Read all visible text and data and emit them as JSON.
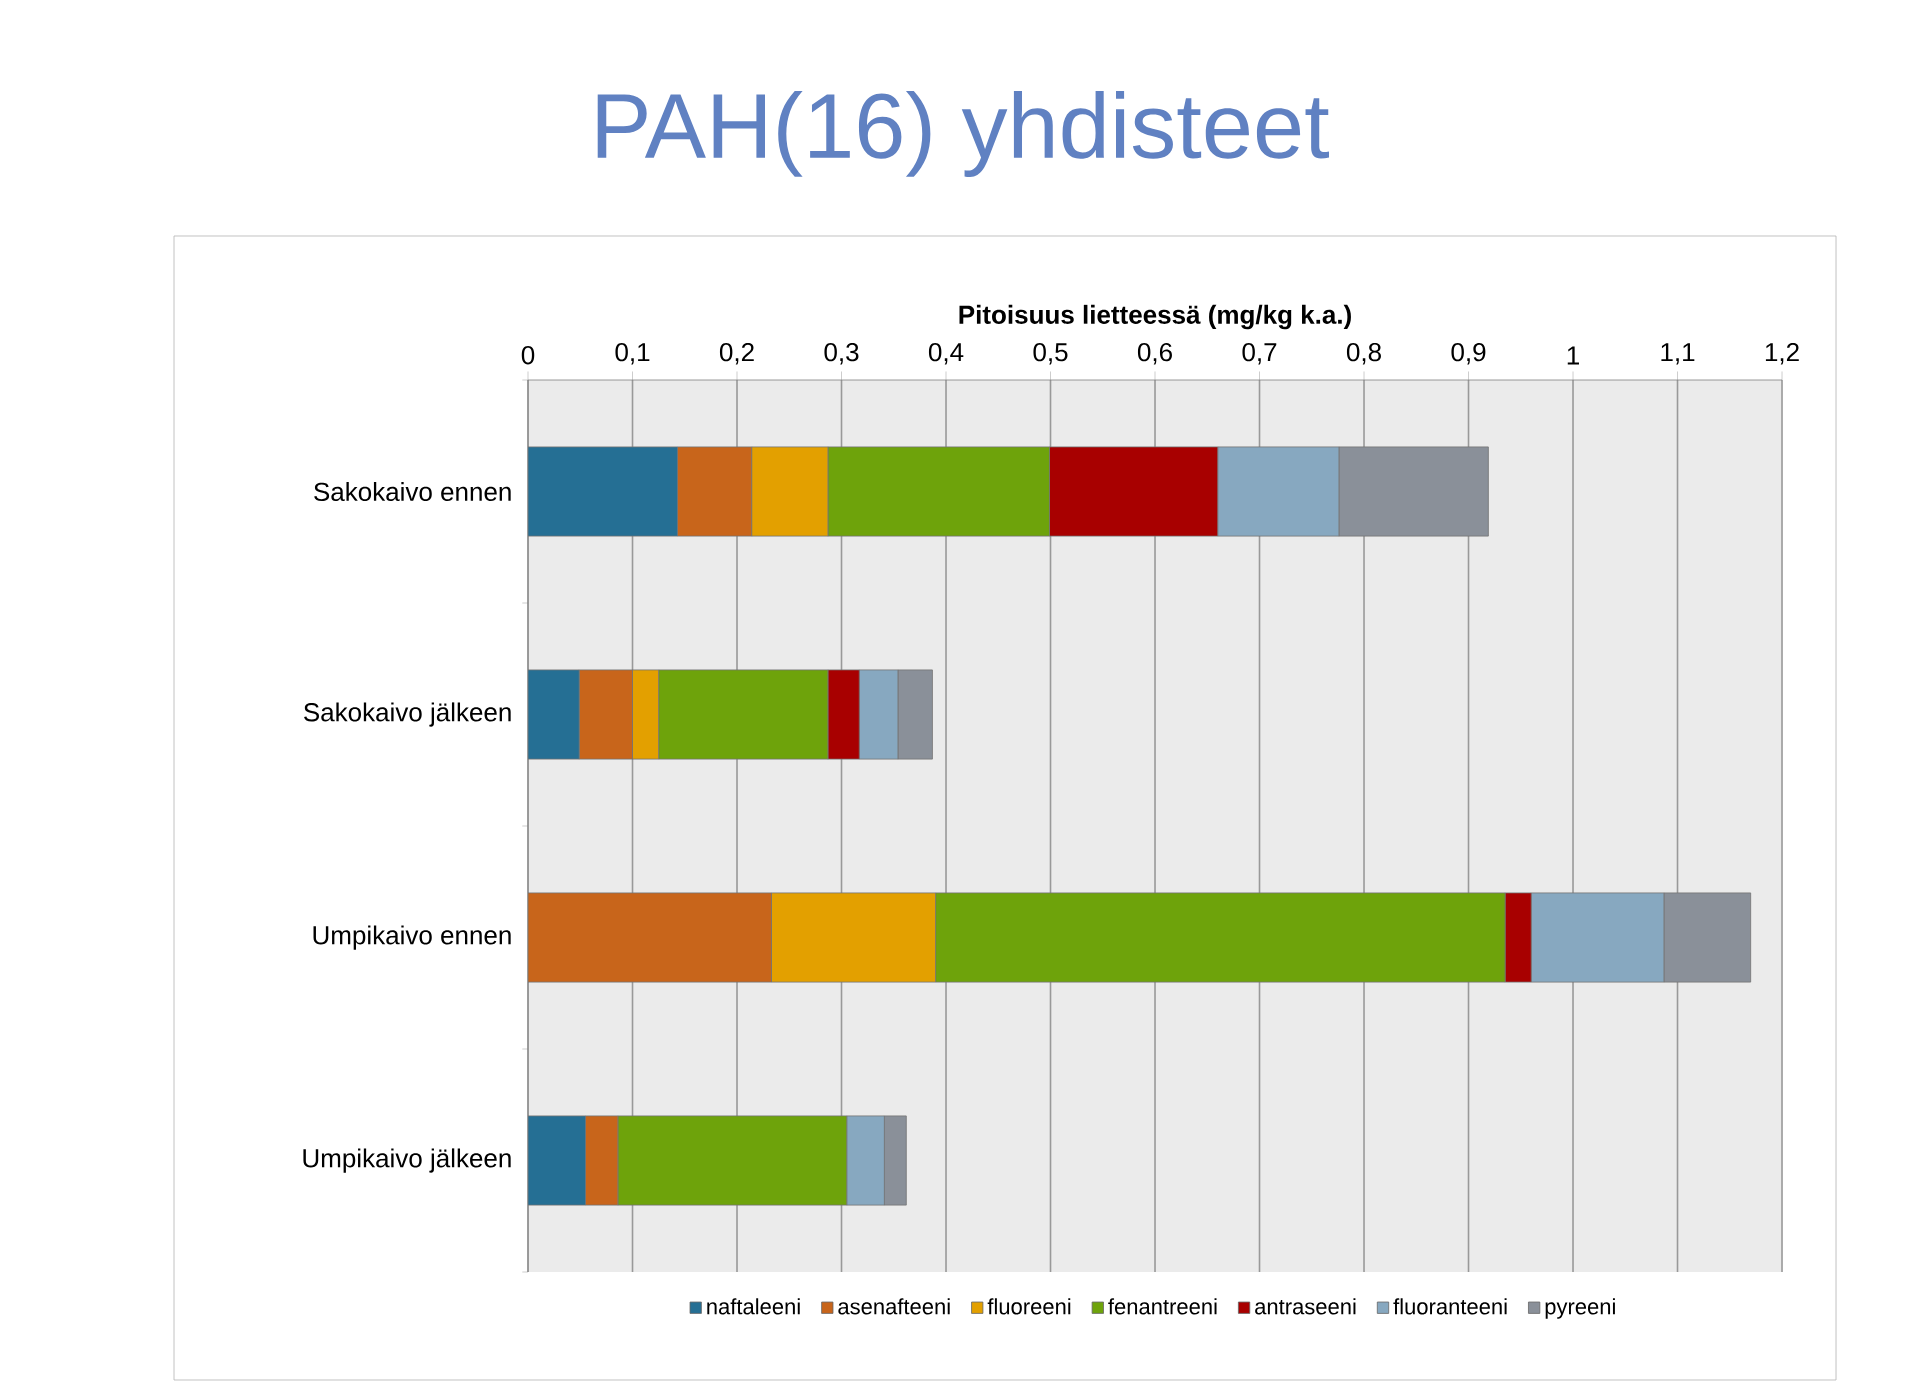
{
  "chart_data": {
    "type": "bar",
    "orientation": "horizontal",
    "stacked": true,
    "title": "PAH(16) yhdisteet",
    "xlabel": "Pitoisuus lietteessä (mg/kg k.a.)",
    "categories": [
      "Sakokaivo ennen",
      "Sakokaivo jälkeen",
      "Umpikaivo ennen",
      "Umpikaivo jälkeen"
    ],
    "series": [
      {
        "name": "naftaleeni",
        "color": "#256f94",
        "values": [
          0.143,
          0.049,
          0,
          0.055
        ]
      },
      {
        "name": "asenafteeni",
        "color": "#c8651b",
        "values": [
          0.071,
          0.051,
          0.233,
          0.031
        ]
      },
      {
        "name": "fluoreeni",
        "color": "#e3a000",
        "values": [
          0.073,
          0.025,
          0.157,
          0
        ]
      },
      {
        "name": "fenantreeni",
        "color": "#6ea30b",
        "values": [
          0.212,
          0.162,
          0.545,
          0.219
        ]
      },
      {
        "name": "antraseeni",
        "color": "#a80000",
        "values": [
          0.161,
          0.03,
          0.025,
          0
        ]
      },
      {
        "name": "fluoranteeni",
        "color": "#87a8c0",
        "values": [
          0.116,
          0.037,
          0.127,
          0.036
        ]
      },
      {
        "name": "pyreeni",
        "color": "#8a9099",
        "values": [
          0.143,
          0.033,
          0.083,
          0.021
        ]
      }
    ],
    "xlim": [
      0,
      1.2
    ],
    "xticks": [
      0,
      {
        "value": 0.1,
        "label": "0,1"
      },
      {
        "value": 0.2,
        "label": "0,2"
      },
      {
        "value": 0.3,
        "label": "0,3"
      },
      {
        "value": 0.4,
        "label": "0,4"
      },
      {
        "value": 0.5,
        "label": "0,5"
      },
      {
        "value": 0.6,
        "label": "0,6"
      },
      {
        "value": 0.7,
        "label": "0,7"
      },
      {
        "value": 0.8,
        "label": "0,8"
      },
      {
        "value": 0.9,
        "label": "0,9"
      },
      1,
      {
        "value": 1.1,
        "label": "1,1"
      },
      {
        "value": 1.2,
        "label": "1,2"
      }
    ],
    "grid": "x",
    "legend": "bottom"
  }
}
